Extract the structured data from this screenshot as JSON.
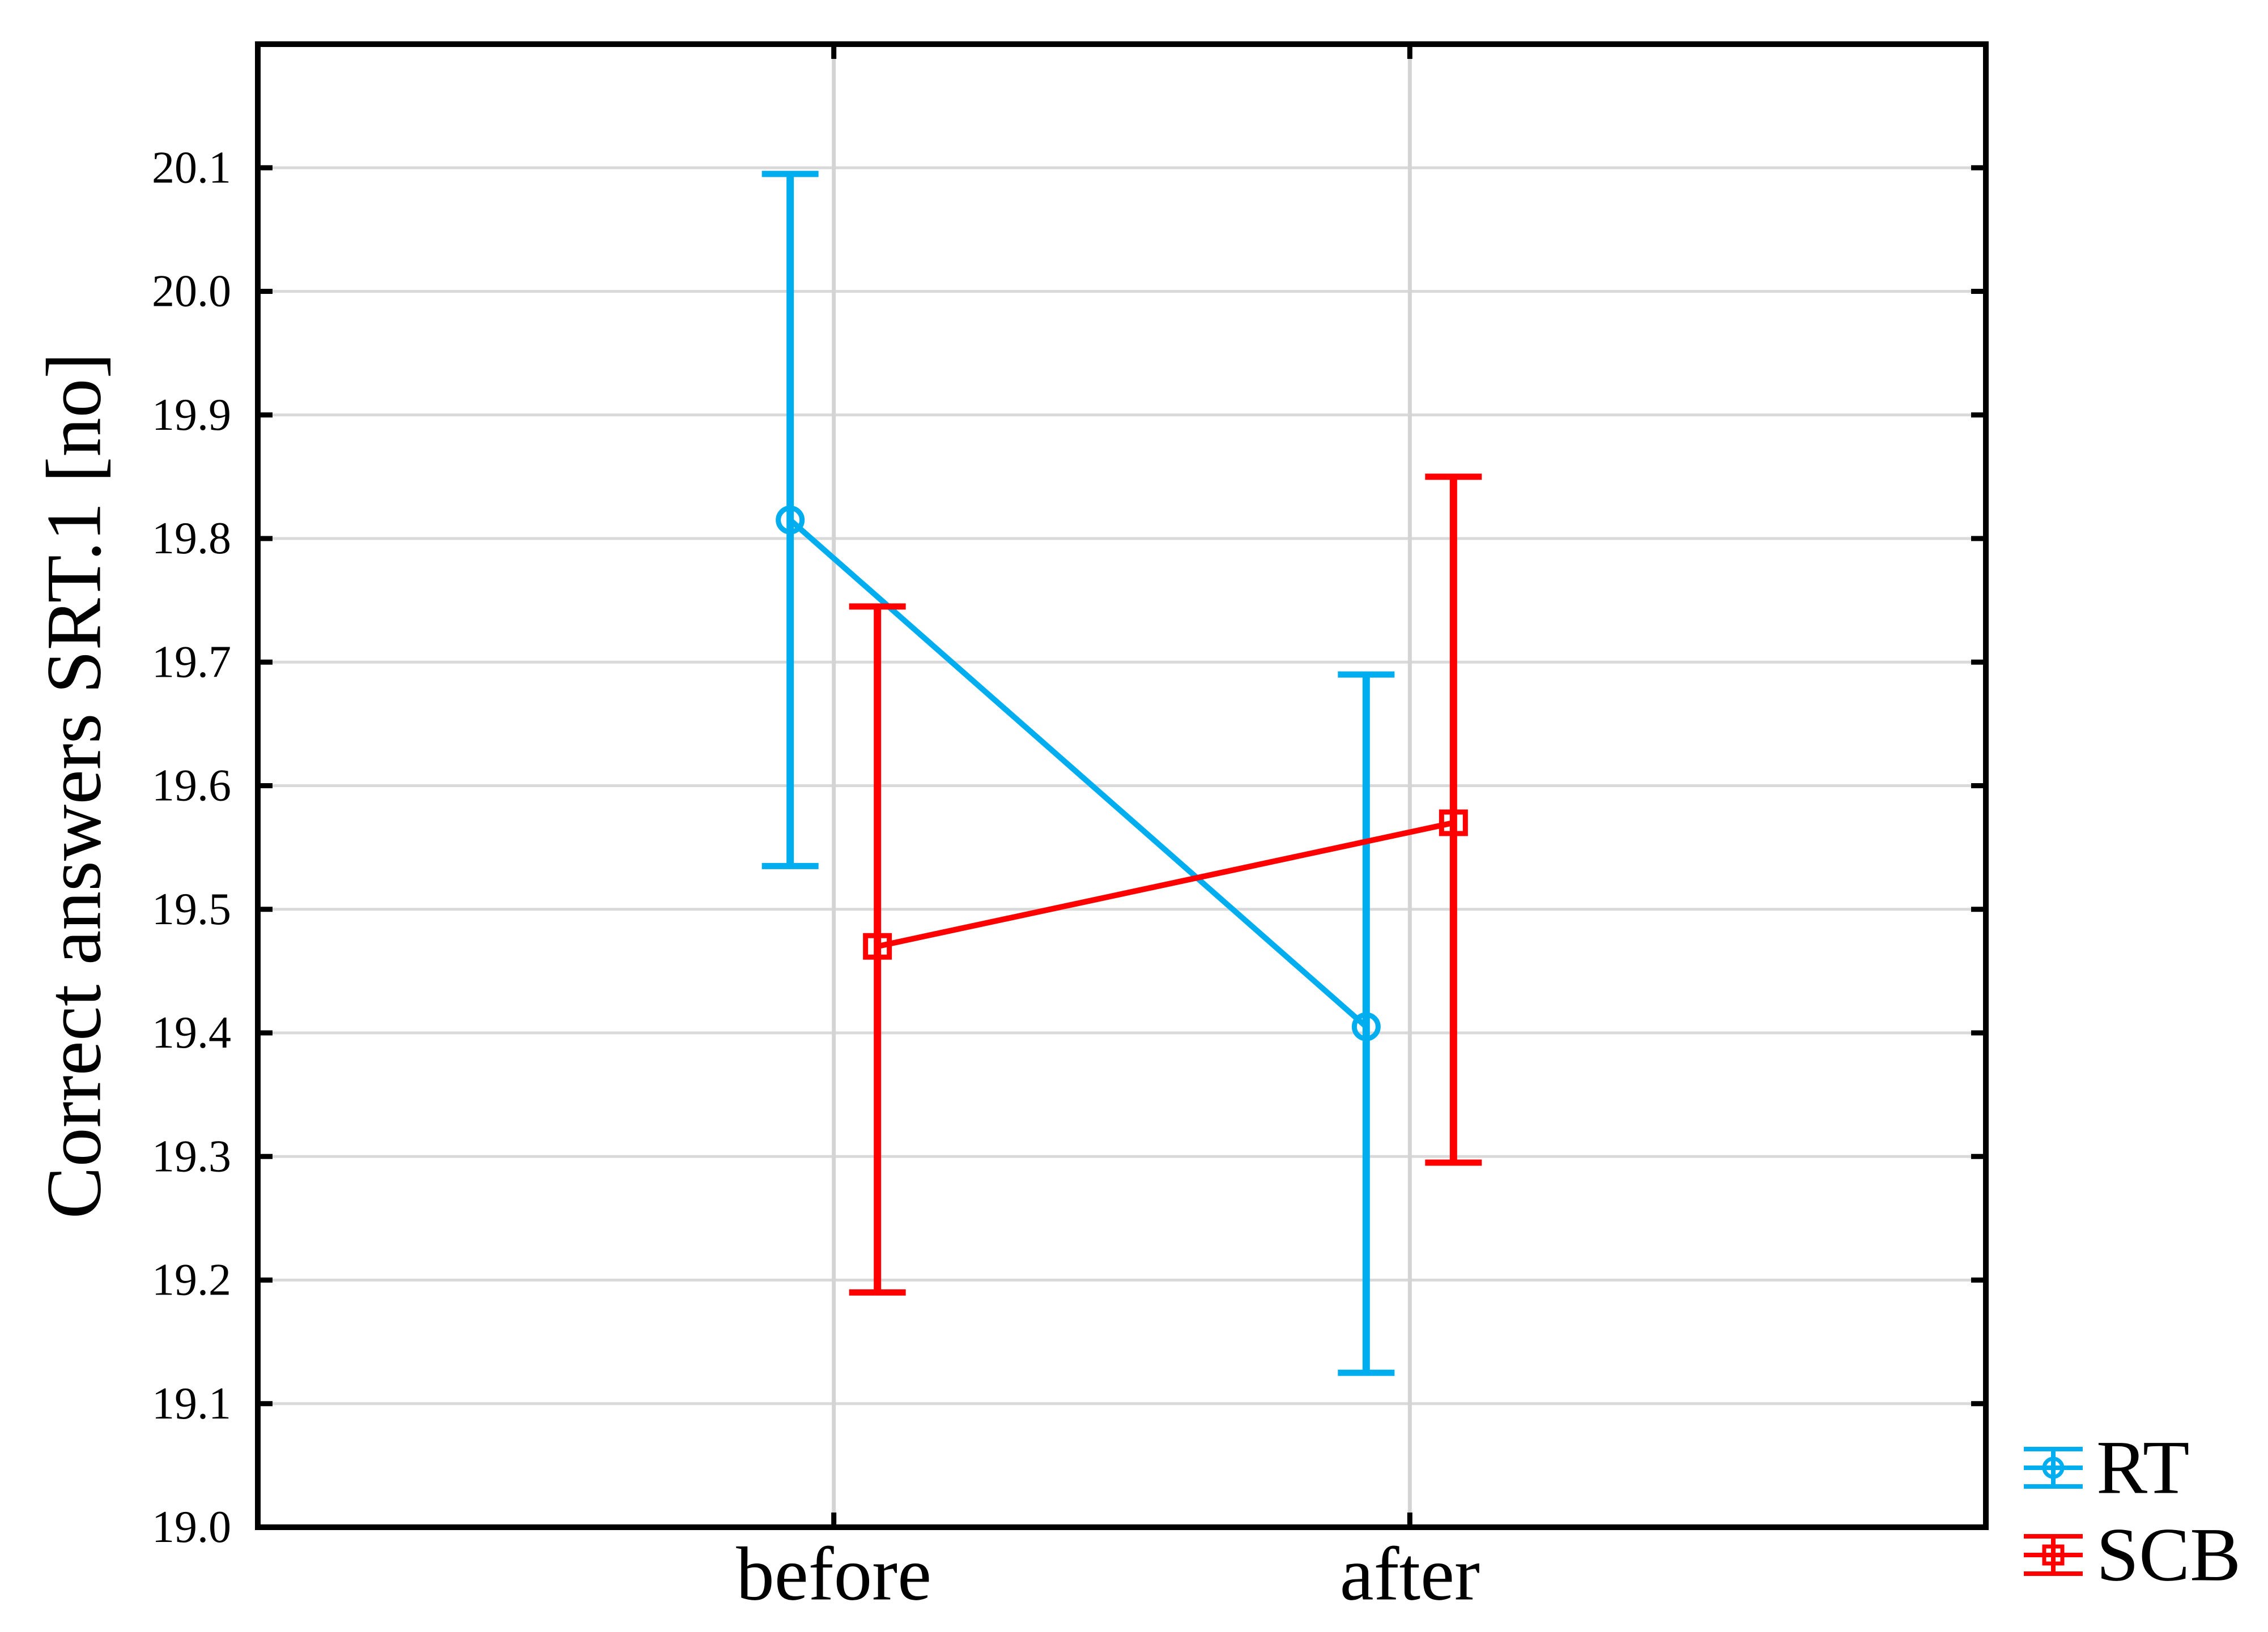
{
  "figure": {
    "background_color": "#ffffff",
    "frame_color": "#000000",
    "h_gridline_color": "#d9d9d9",
    "v_gridline_color": "#d4d4d4"
  },
  "chart_data": {
    "type": "line",
    "subtype": "means-with-error-bars-interaction-plot",
    "title": "",
    "xlabel": "",
    "ylabel": "Correct answers SRT.1 [no]",
    "categories": [
      "before",
      "after"
    ],
    "series": [
      {
        "name": "RT",
        "color": "#00AEEF",
        "marker": "circle",
        "means": [
          19.815,
          19.405
        ],
        "ci_low": [
          19.535,
          19.125
        ],
        "ci_high": [
          20.095,
          19.69
        ]
      },
      {
        "name": "SCB",
        "color": "#FF0000",
        "marker": "square",
        "means": [
          19.47,
          19.57
        ],
        "ci_low": [
          19.19,
          19.295
        ],
        "ci_high": [
          19.745,
          19.85
        ]
      }
    ],
    "ylim": [
      19.0,
      20.2
    ],
    "yticks": [
      19.0,
      19.1,
      19.2,
      19.3,
      19.4,
      19.5,
      19.6,
      19.7,
      19.8,
      19.9,
      20.0,
      20.1
    ],
    "ytick_labels": [
      "19.0",
      "19.1",
      "19.2",
      "19.3",
      "19.4",
      "19.5",
      "19.6",
      "19.7",
      "19.8",
      "19.9",
      "20.0",
      "20.1"
    ],
    "grid": true,
    "legend_position": "bottom-right",
    "legend": [
      {
        "label": "RT",
        "color": "#00AEEF",
        "marker": "circle"
      },
      {
        "label": "SCB",
        "color": "#FF0000",
        "marker": "square"
      }
    ]
  }
}
